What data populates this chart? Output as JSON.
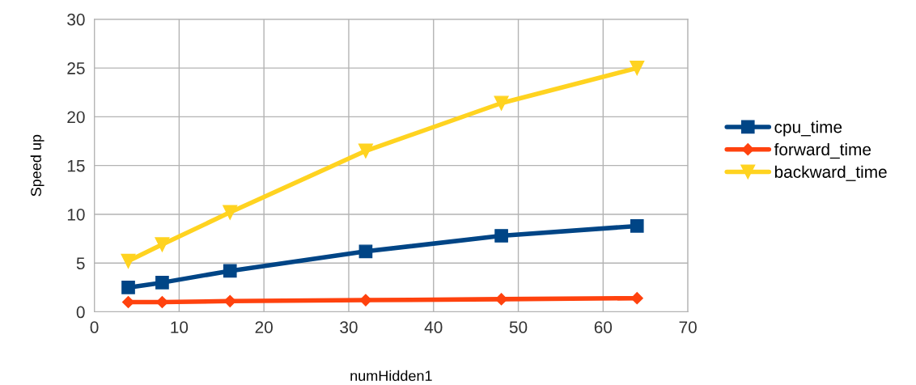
{
  "chart_data": {
    "type": "line",
    "xlabel": "numHidden1",
    "ylabel": "Speed up",
    "xlim": [
      0,
      70
    ],
    "xticks": [
      0,
      10,
      20,
      30,
      40,
      50,
      60,
      70
    ],
    "ylim": [
      0,
      30
    ],
    "yticks": [
      0,
      5,
      10,
      15,
      20,
      25,
      30
    ],
    "grid": true,
    "legend": "right",
    "line_style": "solid",
    "series": [
      {
        "name": "cpu_time",
        "color": "#004586",
        "marker": "square",
        "x": [
          4,
          8,
          16,
          32,
          48,
          64
        ],
        "values": [
          2.5,
          3.0,
          4.2,
          6.2,
          7.8,
          8.8
        ]
      },
      {
        "name": "forward_time",
        "color": "#ff420e",
        "marker": "diamond",
        "x": [
          4,
          8,
          16,
          32,
          48,
          64
        ],
        "values": [
          1.0,
          1.0,
          1.1,
          1.2,
          1.3,
          1.4
        ]
      },
      {
        "name": "backward_time",
        "color": "#ffd320",
        "marker": "triangle",
        "x": [
          4,
          8,
          16,
          32,
          48,
          64
        ],
        "values": [
          5.2,
          6.9,
          10.2,
          16.5,
          21.4,
          25.0
        ]
      }
    ]
  }
}
